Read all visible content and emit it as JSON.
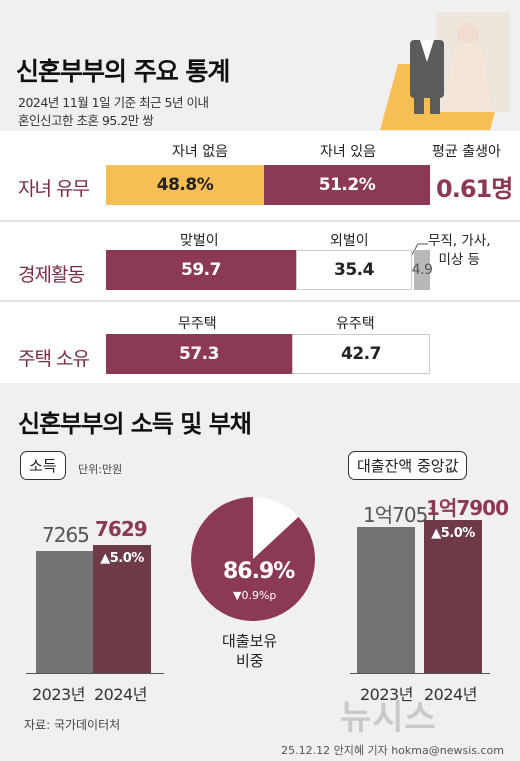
{
  "header": {
    "title": "신혼부부의 주요 통계",
    "subtitle1": "2024년 11월 1일 기준 최근 5년 이내",
    "subtitle2": "혼인신고한 초혼 95.2만 쌍"
  },
  "children": {
    "row_label": "자녀 유무",
    "col_none": "자녀 없음",
    "col_have": "자녀 있음",
    "col_birth": "평균 출생아",
    "none_value": "48.8%",
    "have_value": "51.2%",
    "birth_value": "0.61명",
    "none_fraction": 48.8,
    "have_fraction": 51.2
  },
  "economy": {
    "row_label": "경제활동",
    "col_dual": "맞벌이",
    "col_single": "외벌이",
    "col_other_line1": "무직, 가사,",
    "col_other_line2": "미상 등",
    "dual_value": "59.7",
    "single_value": "35.4",
    "other_value": "4.9"
  },
  "housing": {
    "row_label": "주택 소유",
    "col_none": "무주택",
    "col_have": "유주택",
    "none_value": "57.3",
    "have_value": "42.7"
  },
  "section2": {
    "title": "신혼부부의 소득 및 부채",
    "income_label": "소득",
    "income_unit": "단위:만원",
    "loan_label": "대출잔액 중앙값",
    "loan_ratio_label1": "대출보유",
    "loan_ratio_label2": "비중",
    "loan_ratio_value": "86.9%",
    "loan_ratio_change": "▼0.9%p",
    "loan_ratio_fraction": 86.9
  },
  "chart_data": [
    {
      "type": "bar",
      "title": "소득",
      "categories": [
        "2023년",
        "2024년"
      ],
      "values": [
        7265,
        7629
      ],
      "labels": [
        "7265",
        "7629"
      ],
      "change": "▲5.0%",
      "unit": "단위:만원",
      "ylim": [
        0,
        10000
      ]
    },
    {
      "type": "bar",
      "title": "대출잔액 중앙값",
      "categories": [
        "2023년",
        "2024년"
      ],
      "values": [
        17051,
        17900
      ],
      "labels": [
        "1억7051",
        "1억7900"
      ],
      "change": "▲5.0%",
      "ylim": [
        0,
        21000
      ]
    },
    {
      "type": "pie",
      "categories": [
        "대출보유",
        ""
      ],
      "values": [
        86.9,
        13.1
      ]
    }
  ],
  "footer": {
    "source": "자료: 국가데이터처",
    "credit": "25.12.12 안지혜 기자 hokma@newsis.com",
    "watermark": "뉴시스"
  },
  "colors": {
    "accent": "#8c3a54",
    "yellow": "#f7be55",
    "gray_bar": "#737373",
    "loan_red": "#6e3a48"
  }
}
